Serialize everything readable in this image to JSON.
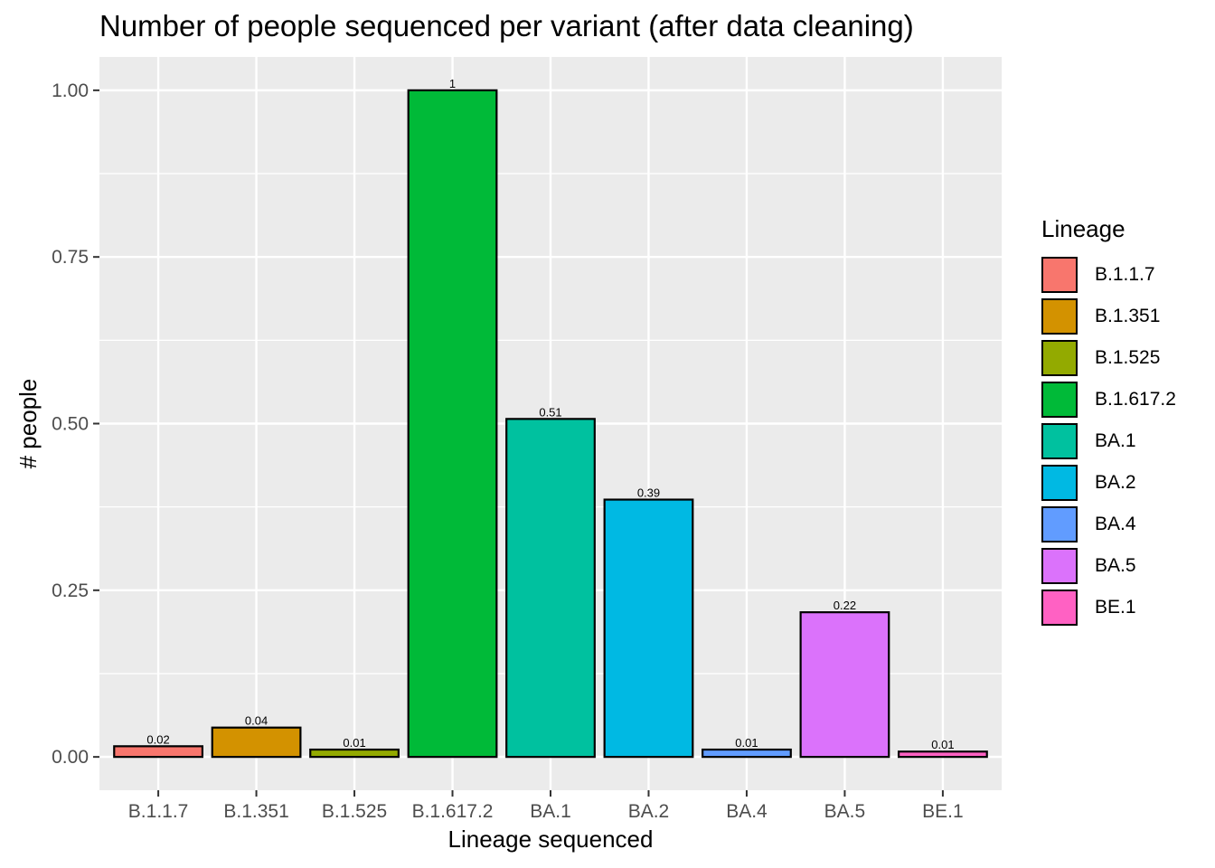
{
  "chart_data": {
    "type": "bar",
    "title": "Number of people sequenced per variant (after data cleaning)",
    "xlabel": "Lineage sequenced",
    "ylabel": "# people",
    "categories": [
      "B.1.1.7",
      "B.1.351",
      "B.1.525",
      "B.1.617.2",
      "BA.1",
      "BA.2",
      "BA.4",
      "BA.5",
      "BE.1"
    ],
    "values": [
      0.016,
      0.044,
      0.011,
      1.0,
      0.507,
      0.386,
      0.011,
      0.217,
      0.008
    ],
    "value_labels": [
      "0.02",
      "0.04",
      "0.01",
      "1",
      "0.51",
      "0.39",
      "0.01",
      "0.22",
      "0.01"
    ],
    "colors": [
      "#F8766D",
      "#D39200",
      "#93AA00",
      "#00BA38",
      "#00C19F",
      "#00B9E3",
      "#619CFF",
      "#DB72FB",
      "#FF61C3"
    ],
    "yticks": [
      "0.00",
      "0.25",
      "0.50",
      "0.75",
      "1.00"
    ],
    "ytick_values": [
      0,
      0.25,
      0.5,
      0.75,
      1.0
    ],
    "ylim": [
      -0.05,
      1.05
    ],
    "grid": true,
    "legend": {
      "title": "Lineage",
      "position": "right",
      "entries": [
        "B.1.1.7",
        "B.1.351",
        "B.1.525",
        "B.1.617.2",
        "BA.1",
        "BA.2",
        "BA.4",
        "BA.5",
        "BE.1"
      ]
    },
    "theme": {
      "panel_background": "#EBEBEB",
      "gridline_color": "#FFFFFF",
      "bar_outline": "#000000"
    }
  }
}
